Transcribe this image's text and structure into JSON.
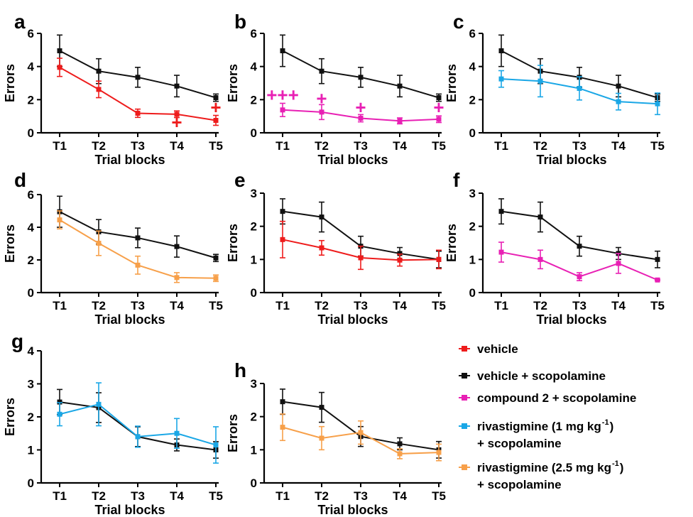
{
  "colors": {
    "vehicle": "#ee1c1c",
    "vehicle_scop": "#111111",
    "compound2": "#e820b4",
    "riva1": "#1aa7e6",
    "riva25": "#f7a04a"
  },
  "legend": {
    "items": [
      {
        "key": "vehicle",
        "lines": [
          "vehicle"
        ]
      },
      {
        "key": "vehicle_scop",
        "lines": [
          "vehicle + scopolamine"
        ]
      },
      {
        "key": "compound2",
        "lines": [
          "compound 2 + scopolamine"
        ]
      },
      {
        "key": "riva1",
        "lines": [
          "rivastigmine (1 mg kg",
          "+ scopolamine"
        ],
        "sup": "-1",
        "suffix": ")"
      },
      {
        "key": "riva25",
        "lines": [
          "rivastigmine (2.5 mg kg",
          "+ scopolamine"
        ],
        "sup": "-1",
        "suffix": ")"
      }
    ]
  },
  "chart_data": [
    {
      "panel": "a",
      "type": "line",
      "xlabel": "Trial blocks",
      "ylabel": "Errors",
      "categories": [
        "T1",
        "T2",
        "T3",
        "T4",
        "T5"
      ],
      "ylim": [
        0,
        6
      ],
      "yticks": [
        0,
        2,
        4,
        6
      ],
      "series": [
        {
          "key": "vehicle_scop",
          "values": [
            4.95,
            3.72,
            3.35,
            2.82,
            2.12
          ],
          "errors": [
            0.95,
            0.75,
            0.6,
            0.65,
            0.22
          ]
        },
        {
          "key": "vehicle",
          "values": [
            3.95,
            2.62,
            1.18,
            1.12,
            0.75
          ],
          "errors": [
            0.55,
            0.5,
            0.25,
            0.2,
            0.3
          ]
        }
      ],
      "markers": [
        {
          "x": "T4",
          "y": 0.55,
          "key": "vehicle",
          "text": "+"
        },
        {
          "x": "T5",
          "y": 1.45,
          "key": "vehicle",
          "text": "+"
        }
      ]
    },
    {
      "panel": "b",
      "type": "line",
      "xlabel": "Trial blocks",
      "ylabel": "Errors",
      "categories": [
        "T1",
        "T2",
        "T3",
        "T4",
        "T5"
      ],
      "ylim": [
        0,
        6
      ],
      "yticks": [
        0,
        2,
        4,
        6
      ],
      "series": [
        {
          "key": "vehicle_scop",
          "values": [
            4.95,
            3.72,
            3.35,
            2.82,
            2.12
          ],
          "errors": [
            0.95,
            0.75,
            0.6,
            0.65,
            0.22
          ]
        },
        {
          "key": "compound2",
          "values": [
            1.38,
            1.25,
            0.88,
            0.72,
            0.82
          ],
          "errors": [
            0.4,
            0.45,
            0.22,
            0.18,
            0.2
          ]
        }
      ],
      "markers": [
        {
          "x": "T1",
          "y": 2.2,
          "key": "compound2",
          "text": "+++"
        },
        {
          "x": "T2",
          "y": 2.0,
          "key": "compound2",
          "text": "+"
        },
        {
          "x": "T3",
          "y": 1.45,
          "key": "compound2",
          "text": "+"
        },
        {
          "x": "T5",
          "y": 1.45,
          "key": "compound2",
          "text": "+"
        }
      ]
    },
    {
      "panel": "c",
      "type": "line",
      "xlabel": "Trial blocks",
      "ylabel": "Errors",
      "categories": [
        "T1",
        "T2",
        "T3",
        "T4",
        "T5"
      ],
      "ylim": [
        0,
        6
      ],
      "yticks": [
        0,
        2,
        4,
        6
      ],
      "series": [
        {
          "key": "vehicle_scop",
          "values": [
            4.95,
            3.72,
            3.35,
            2.82,
            2.12
          ],
          "errors": [
            0.95,
            0.75,
            0.6,
            0.65,
            0.22
          ]
        },
        {
          "key": "riva1",
          "values": [
            3.25,
            3.12,
            2.68,
            1.88,
            1.75
          ],
          "errors": [
            0.5,
            0.95,
            0.7,
            0.5,
            0.65
          ]
        }
      ],
      "markers": []
    },
    {
      "panel": "d",
      "type": "line",
      "xlabel": "Trial blocks",
      "ylabel": "Errors",
      "categories": [
        "T1",
        "T2",
        "T3",
        "T4",
        "T5"
      ],
      "ylim": [
        0,
        6
      ],
      "yticks": [
        0,
        2,
        4,
        6
      ],
      "series": [
        {
          "key": "vehicle_scop",
          "values": [
            4.95,
            3.72,
            3.35,
            2.82,
            2.12
          ],
          "errors": [
            0.95,
            0.75,
            0.6,
            0.65,
            0.22
          ]
        },
        {
          "key": "riva25",
          "values": [
            4.45,
            3.02,
            1.68,
            0.92,
            0.88
          ],
          "errors": [
            0.55,
            0.75,
            0.55,
            0.3,
            0.2
          ]
        }
      ],
      "markers": []
    },
    {
      "panel": "e",
      "type": "line",
      "xlabel": "Trial blocks",
      "ylabel": "Errors",
      "categories": [
        "T1",
        "T2",
        "T3",
        "T4",
        "T5"
      ],
      "ylim": [
        0,
        3
      ],
      "yticks": [
        0,
        1,
        2,
        3
      ],
      "series": [
        {
          "key": "vehicle_scop",
          "values": [
            2.45,
            2.28,
            1.4,
            1.18,
            1.0
          ],
          "errors": [
            0.38,
            0.45,
            0.3,
            0.18,
            0.25
          ]
        },
        {
          "key": "vehicle",
          "values": [
            1.6,
            1.35,
            1.05,
            0.98,
            1.0
          ],
          "errors": [
            0.55,
            0.22,
            0.35,
            0.18,
            0.28
          ]
        }
      ],
      "markers": []
    },
    {
      "panel": "f",
      "type": "line",
      "xlabel": "Trial blocks",
      "ylabel": "Errors",
      "categories": [
        "T1",
        "T2",
        "T3",
        "T4",
        "T5"
      ],
      "ylim": [
        0,
        3
      ],
      "yticks": [
        0,
        1,
        2,
        3
      ],
      "series": [
        {
          "key": "vehicle_scop",
          "values": [
            2.45,
            2.28,
            1.4,
            1.18,
            1.0
          ],
          "errors": [
            0.38,
            0.45,
            0.3,
            0.18,
            0.25
          ]
        },
        {
          "key": "compound2",
          "values": [
            1.22,
            1.0,
            0.48,
            0.88,
            0.38
          ],
          "errors": [
            0.3,
            0.28,
            0.12,
            0.3,
            0.02
          ]
        }
      ],
      "markers": []
    },
    {
      "panel": "g",
      "type": "line",
      "xlabel": "Trial blocks",
      "ylabel": "Errors",
      "categories": [
        "T1",
        "T2",
        "T3",
        "T4",
        "T5"
      ],
      "ylim": [
        0,
        4
      ],
      "yticks": [
        0,
        1,
        2,
        3,
        4
      ],
      "series": [
        {
          "key": "vehicle_scop",
          "values": [
            2.45,
            2.28,
            1.4,
            1.15,
            1.0
          ],
          "errors": [
            0.38,
            0.45,
            0.3,
            0.18,
            0.25
          ]
        },
        {
          "key": "riva1",
          "values": [
            2.08,
            2.38,
            1.4,
            1.5,
            1.15
          ],
          "errors": [
            0.35,
            0.65,
            0.32,
            0.45,
            0.55
          ]
        }
      ],
      "markers": []
    },
    {
      "panel": "h",
      "type": "line",
      "xlabel": "Trial blocks",
      "ylabel": "Errors",
      "categories": [
        "T1",
        "T2",
        "T3",
        "T4",
        "T5"
      ],
      "ylim": [
        0,
        3
      ],
      "yticks": [
        0,
        1,
        2,
        3
      ],
      "series": [
        {
          "key": "vehicle_scop",
          "values": [
            2.45,
            2.28,
            1.4,
            1.18,
            1.0
          ],
          "errors": [
            0.38,
            0.45,
            0.3,
            0.18,
            0.25
          ]
        },
        {
          "key": "riva25",
          "values": [
            1.68,
            1.35,
            1.52,
            0.88,
            0.92
          ],
          "errors": [
            0.4,
            0.35,
            0.35,
            0.15,
            0.25
          ]
        }
      ],
      "markers": []
    }
  ]
}
